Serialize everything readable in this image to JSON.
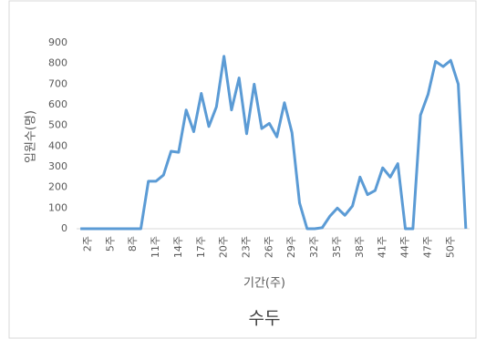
{
  "chart_data": {
    "type": "line",
    "title": "수두",
    "x_label": "기간(주)",
    "y_label": "입원수(명)",
    "categories": [
      null,
      "2주",
      null,
      null,
      "5주",
      null,
      null,
      "8주",
      null,
      null,
      "11주",
      null,
      null,
      "14주",
      null,
      null,
      "17주",
      null,
      null,
      "20주",
      null,
      null,
      "23주",
      null,
      null,
      "26주",
      null,
      null,
      "29주",
      null,
      null,
      "32주",
      null,
      null,
      "35주",
      null,
      null,
      "38주",
      null,
      null,
      "41주",
      null,
      null,
      "44주",
      null,
      null,
      "47주",
      null,
      null,
      "50주",
      null,
      null
    ],
    "series": [
      {
        "name": "수두",
        "color": "#5b9bd5",
        "values": [
          0,
          0,
          0,
          0,
          0,
          0,
          0,
          0,
          0,
          230,
          230,
          260,
          375,
          370,
          575,
          470,
          655,
          495,
          590,
          835,
          575,
          730,
          460,
          700,
          485,
          510,
          445,
          610,
          465,
          125,
          0,
          0,
          5,
          60,
          100,
          65,
          110,
          250,
          165,
          185,
          295,
          250,
          315,
          0,
          0,
          550,
          650,
          810,
          785,
          815,
          700,
          0
        ]
      }
    ],
    "ylim": [
      0,
      900
    ],
    "yticks": [
      0,
      100,
      200,
      300,
      400,
      500,
      600,
      700,
      800,
      900
    ],
    "grid": false
  }
}
